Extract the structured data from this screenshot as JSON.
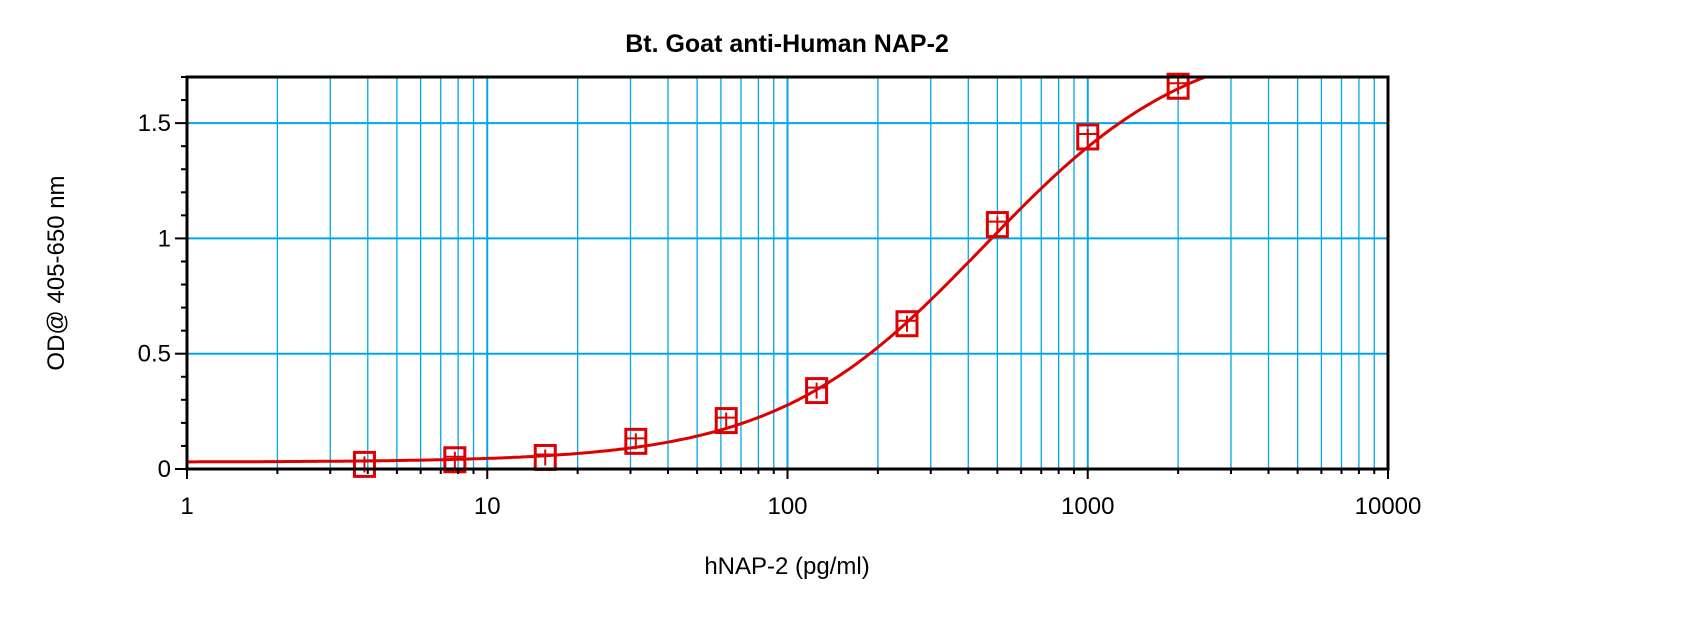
{
  "chart_data": {
    "type": "scatter",
    "title": "Bt. Goat anti-Human NAP-2",
    "xlabel": "hNAP-2 (pg/ml)",
    "ylabel": "OD@ 405-650 nm",
    "xscale": "log",
    "xlim": [
      1,
      10000
    ],
    "ylim": [
      0,
      1.7
    ],
    "x_ticks": [
      "1",
      "10",
      "100",
      "1000",
      "10000"
    ],
    "y_ticks": [
      "0",
      "0.5",
      "1",
      "1.5"
    ],
    "grid": true,
    "legend": "none",
    "colors": {
      "grid": "#00a8e6",
      "series": "#dd0000",
      "axes": "#000000"
    },
    "series": [
      {
        "x": [
          3.9,
          7.8,
          15.6,
          31.25,
          62.5,
          125,
          250,
          500,
          1000,
          2000
        ],
        "y": [
          0.02,
          0.04,
          0.05,
          0.12,
          0.21,
          0.34,
          0.63,
          1.06,
          1.44,
          1.66
        ],
        "marker": "square",
        "fit_curve": true
      }
    ]
  }
}
